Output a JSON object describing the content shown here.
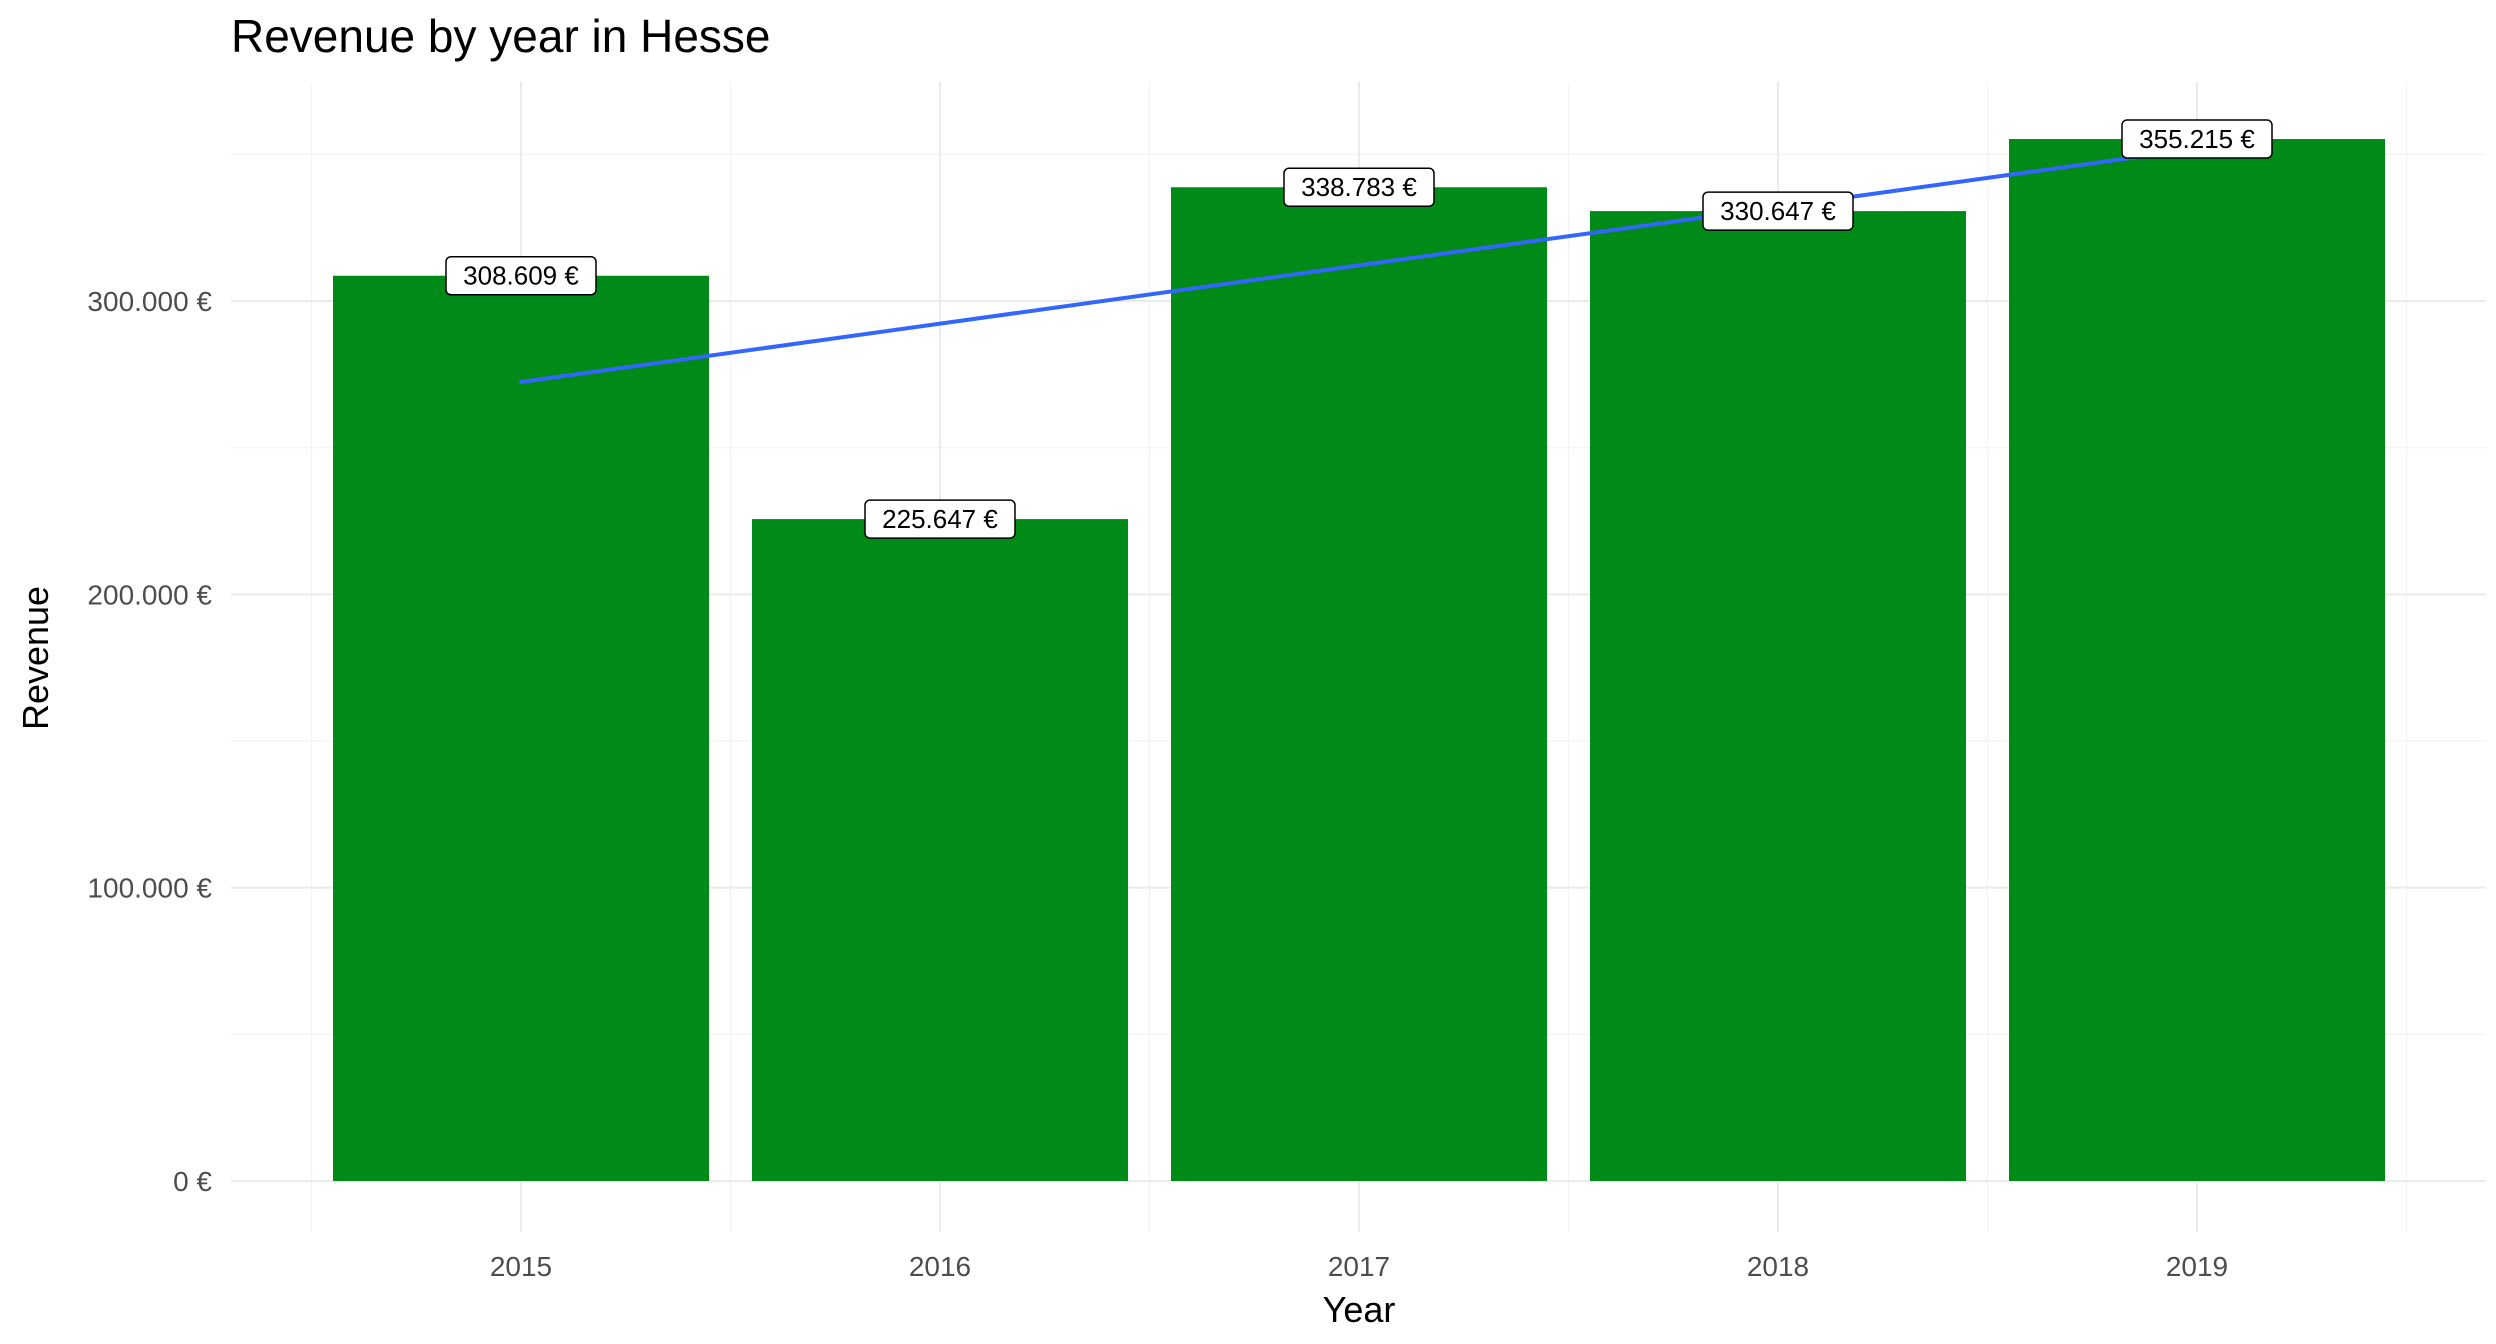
{
  "chart_data": {
    "type": "bar",
    "title": "Revenue by year in Hesse",
    "xlabel": "Year",
    "ylabel": "Revenue",
    "categories": [
      "2015",
      "2016",
      "2017",
      "2018",
      "2019"
    ],
    "values": [
      308609,
      225647,
      338783,
      330647,
      355215
    ],
    "data_labels": [
      "308.609 €",
      "225.647 €",
      "338.783 €",
      "330.647 €",
      "355.215 €"
    ],
    "ylim": [
      0,
      375000
    ],
    "y_ticks": [
      0,
      100000,
      200000,
      300000
    ],
    "y_tick_labels": [
      "0 €",
      "100.000 €",
      "200.000 €",
      "300.000 €"
    ],
    "trend_line": {
      "type": "linear",
      "start": 272400,
      "end": 351900
    },
    "grid": true,
    "legend": "none",
    "colors": {
      "bar": "#008b19",
      "trend": "#3366ff"
    }
  }
}
